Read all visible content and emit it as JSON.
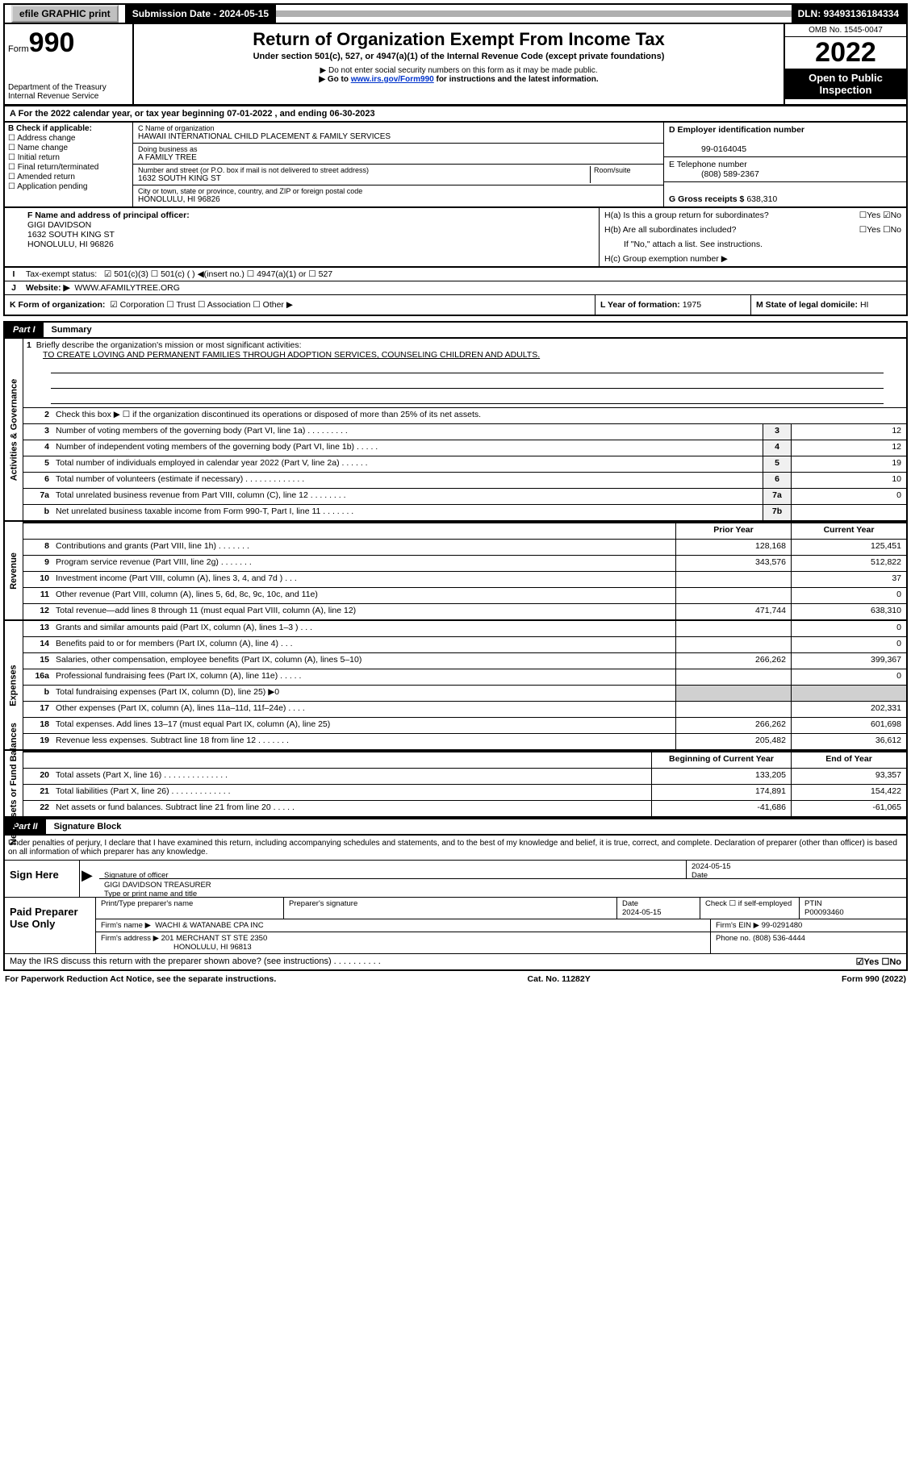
{
  "topbar": {
    "efile": "efile GRAPHIC print",
    "sub_label": "Submission Date - 2024-05-15",
    "dln": "DLN: 93493136184334"
  },
  "header": {
    "form_prefix": "Form",
    "form_num": "990",
    "dept1": "Department of the Treasury",
    "dept2": "Internal Revenue Service",
    "title": "Return of Organization Exempt From Income Tax",
    "subtitle": "Under section 501(c), 527, or 4947(a)(1) of the Internal Revenue Code (except private foundations)",
    "note1": "▶ Do not enter social security numbers on this form as it may be made public.",
    "note2_pre": "▶ Go to ",
    "note2_link": "www.irs.gov/Form990",
    "note2_post": " for instructions and the latest information.",
    "omb": "OMB No. 1545-0047",
    "year": "2022",
    "open": "Open to Public Inspection"
  },
  "period": {
    "text": "A For the 2022 calendar year, or tax year beginning 07-01-2022   , and ending 06-30-2023"
  },
  "boxB": {
    "title": "B Check if applicable:",
    "opts": [
      "Address change",
      "Name change",
      "Initial return",
      "Final return/terminated",
      "Amended return",
      "Application pending"
    ]
  },
  "boxC": {
    "lbl_name": "C Name of organization",
    "org": "HAWAII INTERNATIONAL CHILD PLACEMENT & FAMILY SERVICES",
    "dba_lbl": "Doing business as",
    "dba": "A FAMILY TREE",
    "addr_lbl": "Number and street (or P.O. box if mail is not delivered to street address)",
    "room_lbl": "Room/suite",
    "addr": "1632 SOUTH KING ST",
    "city_lbl": "City or town, state or province, country, and ZIP or foreign postal code",
    "city": "HONOLULU, HI  96826"
  },
  "boxD": {
    "lbl": "D Employer identification number",
    "val": "99-0164045"
  },
  "boxE": {
    "lbl": "E Telephone number",
    "val": "(808) 589-2367"
  },
  "boxG": {
    "lbl": "G Gross receipts $",
    "val": "638,310"
  },
  "boxF": {
    "lbl": "F Name and address of principal officer:",
    "name": "GIGI DAVIDSON",
    "addr": "1632 SOUTH KING ST",
    "city": "HONOLULU, HI  96826"
  },
  "boxH": {
    "a": "H(a)  Is this a group return for subordinates?",
    "a_ans": "☐Yes  ☑No",
    "b": "H(b)  Are all subordinates included?",
    "b_ans": "☐Yes  ☐No",
    "b_note": "If \"No,\" attach a list. See instructions.",
    "c": "H(c)  Group exemption number ▶"
  },
  "boxI": {
    "lbl": "Tax-exempt status:",
    "opts": "☑ 501(c)(3)   ☐ 501(c) (  ) ◀(insert no.)   ☐ 4947(a)(1) or   ☐ 527"
  },
  "boxJ": {
    "lbl": "Website: ▶",
    "val": "WWW.AFAMILYTREE.ORG"
  },
  "boxK": {
    "lbl": "K Form of organization:",
    "opts": "☑ Corporation  ☐ Trust  ☐ Association  ☐ Other ▶"
  },
  "boxL": {
    "lbl": "L Year of formation:",
    "val": "1975"
  },
  "boxM": {
    "lbl": "M State of legal domicile:",
    "val": "HI"
  },
  "parts": {
    "p1": "Part I",
    "p1_title": "Summary",
    "p2": "Part II",
    "p2_title": "Signature Block"
  },
  "summary": {
    "q1": "Briefly describe the organization's mission or most significant activities:",
    "q1_ans": "TO CREATE LOVING AND PERMANENT FAMILIES THROUGH ADOPTION SERVICES, COUNSELING CHILDREN AND ADULTS.",
    "q2": "Check this box ▶ ☐  if the organization discontinued its operations or disposed of more than 25% of its net assets.",
    "rows_gov": [
      {
        "n": "3",
        "d": "Number of voting members of the governing body (Part VI, line 1a)  .  .  .  .  .  .  .  .  .",
        "b": "3",
        "v": "12"
      },
      {
        "n": "4",
        "d": "Number of independent voting members of the governing body (Part VI, line 1b)  .  .  .  .  .",
        "b": "4",
        "v": "12"
      },
      {
        "n": "5",
        "d": "Total number of individuals employed in calendar year 2022 (Part V, line 2a)  .  .  .  .  .  .",
        "b": "5",
        "v": "19"
      },
      {
        "n": "6",
        "d": "Total number of volunteers (estimate if necessary)  .  .  .  .  .  .  .  .  .  .  .  .  .",
        "b": "6",
        "v": "10"
      },
      {
        "n": "7a",
        "d": "Total unrelated business revenue from Part VIII, column (C), line 12  .  .  .  .  .  .  .  .",
        "b": "7a",
        "v": "0"
      },
      {
        "n": "b",
        "d": "Net unrelated business taxable income from Form 990-T, Part I, line 11  .  .  .  .  .  .  .",
        "b": "7b",
        "v": ""
      }
    ],
    "col_prior": "Prior Year",
    "col_curr": "Current Year",
    "rows_rev": [
      {
        "n": "8",
        "d": "Contributions and grants (Part VIII, line 1h)  .  .  .  .  .  .  .",
        "p": "128,168",
        "c": "125,451"
      },
      {
        "n": "9",
        "d": "Program service revenue (Part VIII, line 2g)  .  .  .  .  .  .  .",
        "p": "343,576",
        "c": "512,822"
      },
      {
        "n": "10",
        "d": "Investment income (Part VIII, column (A), lines 3, 4, and 7d )  .  .  .",
        "p": "",
        "c": "37"
      },
      {
        "n": "11",
        "d": "Other revenue (Part VIII, column (A), lines 5, 6d, 8c, 9c, 10c, and 11e)",
        "p": "",
        "c": "0"
      },
      {
        "n": "12",
        "d": "Total revenue—add lines 8 through 11 (must equal Part VIII, column (A), line 12)",
        "p": "471,744",
        "c": "638,310"
      }
    ],
    "rows_exp": [
      {
        "n": "13",
        "d": "Grants and similar amounts paid (Part IX, column (A), lines 1–3 )  .  .  .",
        "p": "",
        "c": "0"
      },
      {
        "n": "14",
        "d": "Benefits paid to or for members (Part IX, column (A), line 4)  .  .  .",
        "p": "",
        "c": "0"
      },
      {
        "n": "15",
        "d": "Salaries, other compensation, employee benefits (Part IX, column (A), lines 5–10)",
        "p": "266,262",
        "c": "399,367"
      },
      {
        "n": "16a",
        "d": "Professional fundraising fees (Part IX, column (A), line 11e)  .  .  .  .  .",
        "p": "",
        "c": "0"
      },
      {
        "n": "b",
        "d": "Total fundraising expenses (Part IX, column (D), line 25) ▶0",
        "p": "—",
        "c": "—"
      },
      {
        "n": "17",
        "d": "Other expenses (Part IX, column (A), lines 11a–11d, 11f–24e)  .  .  .  .",
        "p": "",
        "c": "202,331"
      },
      {
        "n": "18",
        "d": "Total expenses. Add lines 13–17 (must equal Part IX, column (A), line 25)",
        "p": "266,262",
        "c": "601,698"
      },
      {
        "n": "19",
        "d": "Revenue less expenses. Subtract line 18 from line 12  .  .  .  .  .  .  .",
        "p": "205,482",
        "c": "36,612"
      }
    ],
    "col_begin": "Beginning of Current Year",
    "col_end": "End of Year",
    "rows_net": [
      {
        "n": "20",
        "d": "Total assets (Part X, line 16)  .  .  .  .  .  .  .  .  .  .  .  .  .  .",
        "p": "133,205",
        "c": "93,357"
      },
      {
        "n": "21",
        "d": "Total liabilities (Part X, line 26)  .  .  .  .  .  .  .  .  .  .  .  .  .",
        "p": "174,891",
        "c": "154,422"
      },
      {
        "n": "22",
        "d": "Net assets or fund balances. Subtract line 21 from line 20  .  .  .  .  .",
        "p": "-41,686",
        "c": "-61,065"
      }
    ]
  },
  "vlabels": {
    "gov": "Activities & Governance",
    "rev": "Revenue",
    "exp": "Expenses",
    "net": "Net Assets or Fund Balances"
  },
  "sig": {
    "decl": "Under penalties of perjury, I declare that I have examined this return, including accompanying schedules and statements, and to the best of my knowledge and belief, it is true, correct, and complete. Declaration of preparer (other than officer) is based on all information of which preparer has any knowledge.",
    "sign_here": "Sign Here",
    "sig_officer": "Signature of officer",
    "date_lbl": "Date",
    "date_val": "2024-05-15",
    "name_title_lbl": "Type or print name and title",
    "name_title": "GIGI DAVIDSON  TREASURER",
    "paid": "Paid Preparer Use Only",
    "pp_name_lbl": "Print/Type preparer's name",
    "pp_sig_lbl": "Preparer's signature",
    "pp_date_lbl": "Date",
    "pp_date": "2024-05-15",
    "pp_check": "Check ☐ if self-employed",
    "ptin_lbl": "PTIN",
    "ptin": "P00093460",
    "firm_name_lbl": "Firm's name    ▶",
    "firm_name": "WACHI & WATANABE CPA INC",
    "firm_ein_lbl": "Firm's EIN ▶",
    "firm_ein": "99-0291480",
    "firm_addr_lbl": "Firm's address ▶",
    "firm_addr": "201 MERCHANT ST STE 2350",
    "firm_city": "HONOLULU, HI  96813",
    "phone_lbl": "Phone no.",
    "phone": "(808) 536-4444",
    "may_irs": "May the IRS discuss this return with the preparer shown above? (see instructions)  .  .  .  .  .  .  .  .  .  .",
    "may_ans": "☑Yes  ☐No"
  },
  "footer": {
    "left": "For Paperwork Reduction Act Notice, see the separate instructions.",
    "mid": "Cat. No. 11282Y",
    "right": "Form 990 (2022)"
  }
}
